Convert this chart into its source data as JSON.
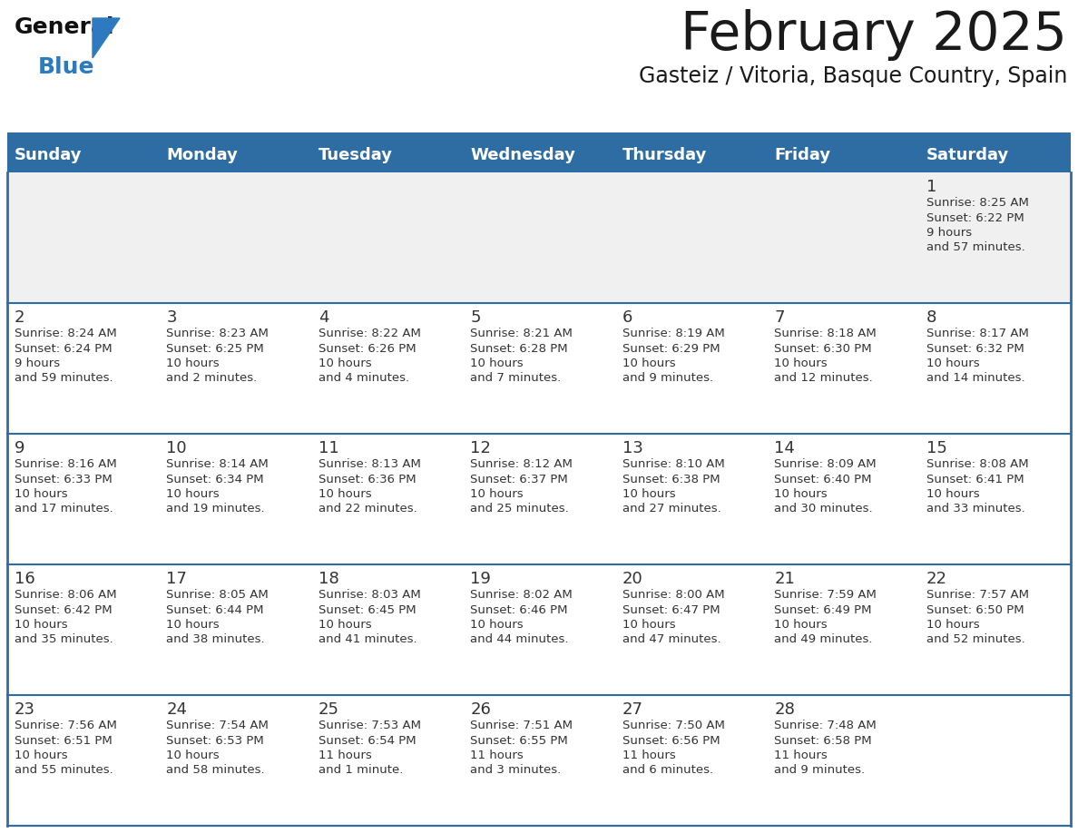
{
  "title": "February 2025",
  "subtitle": "Gasteiz / Vitoria, Basque Country, Spain",
  "header_bg": "#2E6DA4",
  "header_text": "#FFFFFF",
  "cell_bg": "#FFFFFF",
  "row1_bg": "#F0F0F0",
  "border_color": "#2E6DA4",
  "separator_color": "#2E6DA4",
  "text_color": "#333333",
  "days_of_week": [
    "Sunday",
    "Monday",
    "Tuesday",
    "Wednesday",
    "Thursday",
    "Friday",
    "Saturday"
  ],
  "calendar_data": [
    [
      null,
      null,
      null,
      null,
      null,
      null,
      {
        "day": 1,
        "sunrise": "8:25 AM",
        "sunset": "6:22 PM",
        "daylight": "9 hours\nand 57 minutes."
      }
    ],
    [
      {
        "day": 2,
        "sunrise": "8:24 AM",
        "sunset": "6:24 PM",
        "daylight": "9 hours\nand 59 minutes."
      },
      {
        "day": 3,
        "sunrise": "8:23 AM",
        "sunset": "6:25 PM",
        "daylight": "10 hours\nand 2 minutes."
      },
      {
        "day": 4,
        "sunrise": "8:22 AM",
        "sunset": "6:26 PM",
        "daylight": "10 hours\nand 4 minutes."
      },
      {
        "day": 5,
        "sunrise": "8:21 AM",
        "sunset": "6:28 PM",
        "daylight": "10 hours\nand 7 minutes."
      },
      {
        "day": 6,
        "sunrise": "8:19 AM",
        "sunset": "6:29 PM",
        "daylight": "10 hours\nand 9 minutes."
      },
      {
        "day": 7,
        "sunrise": "8:18 AM",
        "sunset": "6:30 PM",
        "daylight": "10 hours\nand 12 minutes."
      },
      {
        "day": 8,
        "sunrise": "8:17 AM",
        "sunset": "6:32 PM",
        "daylight": "10 hours\nand 14 minutes."
      }
    ],
    [
      {
        "day": 9,
        "sunrise": "8:16 AM",
        "sunset": "6:33 PM",
        "daylight": "10 hours\nand 17 minutes."
      },
      {
        "day": 10,
        "sunrise": "8:14 AM",
        "sunset": "6:34 PM",
        "daylight": "10 hours\nand 19 minutes."
      },
      {
        "day": 11,
        "sunrise": "8:13 AM",
        "sunset": "6:36 PM",
        "daylight": "10 hours\nand 22 minutes."
      },
      {
        "day": 12,
        "sunrise": "8:12 AM",
        "sunset": "6:37 PM",
        "daylight": "10 hours\nand 25 minutes."
      },
      {
        "day": 13,
        "sunrise": "8:10 AM",
        "sunset": "6:38 PM",
        "daylight": "10 hours\nand 27 minutes."
      },
      {
        "day": 14,
        "sunrise": "8:09 AM",
        "sunset": "6:40 PM",
        "daylight": "10 hours\nand 30 minutes."
      },
      {
        "day": 15,
        "sunrise": "8:08 AM",
        "sunset": "6:41 PM",
        "daylight": "10 hours\nand 33 minutes."
      }
    ],
    [
      {
        "day": 16,
        "sunrise": "8:06 AM",
        "sunset": "6:42 PM",
        "daylight": "10 hours\nand 35 minutes."
      },
      {
        "day": 17,
        "sunrise": "8:05 AM",
        "sunset": "6:44 PM",
        "daylight": "10 hours\nand 38 minutes."
      },
      {
        "day": 18,
        "sunrise": "8:03 AM",
        "sunset": "6:45 PM",
        "daylight": "10 hours\nand 41 minutes."
      },
      {
        "day": 19,
        "sunrise": "8:02 AM",
        "sunset": "6:46 PM",
        "daylight": "10 hours\nand 44 minutes."
      },
      {
        "day": 20,
        "sunrise": "8:00 AM",
        "sunset": "6:47 PM",
        "daylight": "10 hours\nand 47 minutes."
      },
      {
        "day": 21,
        "sunrise": "7:59 AM",
        "sunset": "6:49 PM",
        "daylight": "10 hours\nand 49 minutes."
      },
      {
        "day": 22,
        "sunrise": "7:57 AM",
        "sunset": "6:50 PM",
        "daylight": "10 hours\nand 52 minutes."
      }
    ],
    [
      {
        "day": 23,
        "sunrise": "7:56 AM",
        "sunset": "6:51 PM",
        "daylight": "10 hours\nand 55 minutes."
      },
      {
        "day": 24,
        "sunrise": "7:54 AM",
        "sunset": "6:53 PM",
        "daylight": "10 hours\nand 58 minutes."
      },
      {
        "day": 25,
        "sunrise": "7:53 AM",
        "sunset": "6:54 PM",
        "daylight": "11 hours\nand 1 minute."
      },
      {
        "day": 26,
        "sunrise": "7:51 AM",
        "sunset": "6:55 PM",
        "daylight": "11 hours\nand 3 minutes."
      },
      {
        "day": 27,
        "sunrise": "7:50 AM",
        "sunset": "6:56 PM",
        "daylight": "11 hours\nand 6 minutes."
      },
      {
        "day": 28,
        "sunrise": "7:48 AM",
        "sunset": "6:58 PM",
        "daylight": "11 hours\nand 9 minutes."
      },
      null
    ]
  ]
}
